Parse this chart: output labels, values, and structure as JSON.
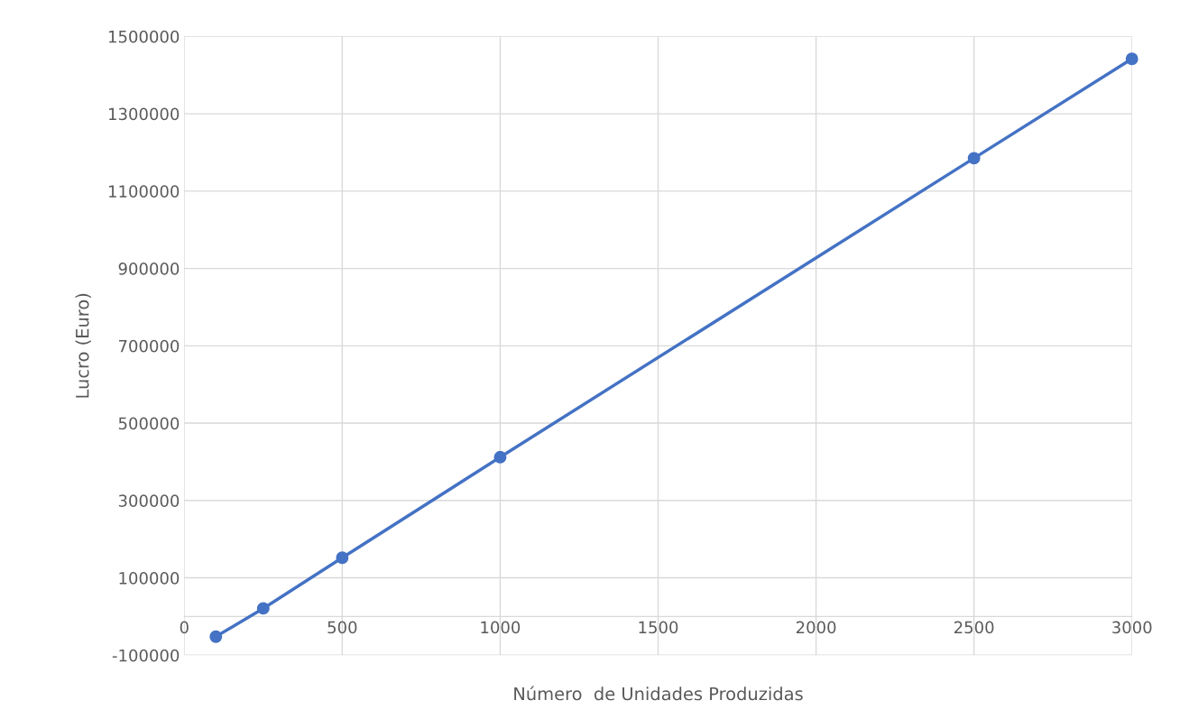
{
  "chart_data": {
    "type": "line",
    "xlabel": "Número  de Unidades Produzidas",
    "ylabel": "Lucro (Euro)",
    "x": [
      100,
      250,
      500,
      1000,
      2500,
      3000
    ],
    "series": [
      {
        "color": "#4472c4",
        "values": [
          -52000,
          21000,
          152000,
          412000,
          1185000,
          1442000
        ]
      }
    ],
    "xlim": [
      0,
      3000
    ],
    "xticks": [
      0,
      500,
      1000,
      1500,
      2000,
      2500,
      3000
    ],
    "ylim": [
      -100000,
      1500000
    ],
    "yticks": [
      -100000,
      100000,
      300000,
      500000,
      700000,
      900000,
      1100000,
      1300000,
      1500000
    ],
    "grid": true,
    "marker": "circle",
    "line_style": "solid"
  }
}
